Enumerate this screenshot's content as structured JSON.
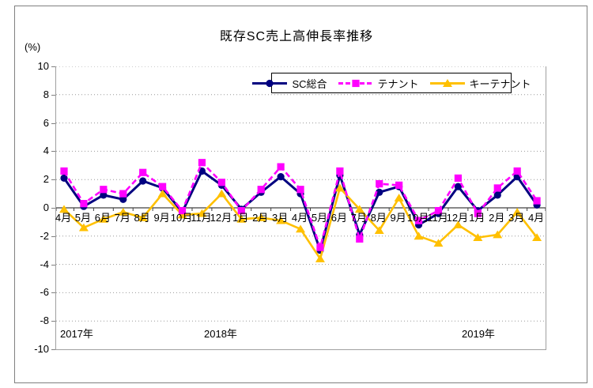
{
  "title": "既存SC売上高伸長率推移",
  "y_axis_unit": "(%)",
  "style_colors": {
    "frame": "#808080",
    "gridline": "#999999",
    "axis": "#404040",
    "legend_border": "#000000",
    "background": "#ffffff"
  },
  "chart_data": {
    "type": "line",
    "title": "既存SC売上高伸長率推移",
    "ylabel": "(%)",
    "ylim": [
      -10,
      10
    ],
    "ytick_step": 2,
    "grid": "horizontal dotted",
    "legend_position": "top center, boxed",
    "y_ticks": [
      "10",
      "8",
      "6",
      "4",
      "2",
      "0",
      "-2",
      "-4",
      "-6",
      "-8",
      "-10"
    ],
    "categories": [
      "4月",
      "5月",
      "6月",
      "7月",
      "8月",
      "9月",
      "10月",
      "11月",
      "12月",
      "1月",
      "2月",
      "3月",
      "4月",
      "5月",
      "6月",
      "7月",
      "8月",
      "9月",
      "10月",
      "11月",
      "12月",
      "1月",
      "2月",
      "3月",
      "4月"
    ],
    "year_labels": [
      "2017年",
      "2018年",
      "2019年"
    ],
    "series": [
      {
        "name": "SC総合",
        "color": "#000080",
        "marker": "circle",
        "linestyle": "solid",
        "values": [
          2.1,
          0.1,
          0.9,
          0.6,
          1.9,
          1.4,
          -0.3,
          2.6,
          1.6,
          -0.1,
          1.1,
          2.2,
          1.0,
          -3.0,
          2.3,
          -1.9,
          1.1,
          1.5,
          -1.2,
          -0.4,
          1.5,
          -0.2,
          0.9,
          2.2,
          0.2
        ]
      },
      {
        "name": "テナント",
        "color": "#FF00FF",
        "marker": "square",
        "linestyle": "dashed",
        "values": [
          2.6,
          0.3,
          1.3,
          1.0,
          2.5,
          1.5,
          -0.2,
          3.2,
          1.8,
          -0.2,
          1.3,
          2.9,
          1.3,
          -2.8,
          2.6,
          -2.2,
          1.7,
          1.6,
          -0.9,
          -0.2,
          2.1,
          -0.4,
          1.4,
          2.6,
          0.5
        ]
      },
      {
        "name": "キーテナント",
        "color": "#FFC000",
        "marker": "triangle",
        "linestyle": "solid",
        "values": [
          -0.1,
          -1.4,
          -0.8,
          -0.3,
          -0.7,
          1.0,
          -0.5,
          -0.4,
          1.0,
          -0.8,
          -0.7,
          -0.9,
          -1.5,
          -3.6,
          1.4,
          -0.1,
          -1.6,
          0.7,
          -2.0,
          -2.5,
          -1.2,
          -2.1,
          -1.9,
          -0.3,
          -2.1
        ]
      }
    ]
  }
}
